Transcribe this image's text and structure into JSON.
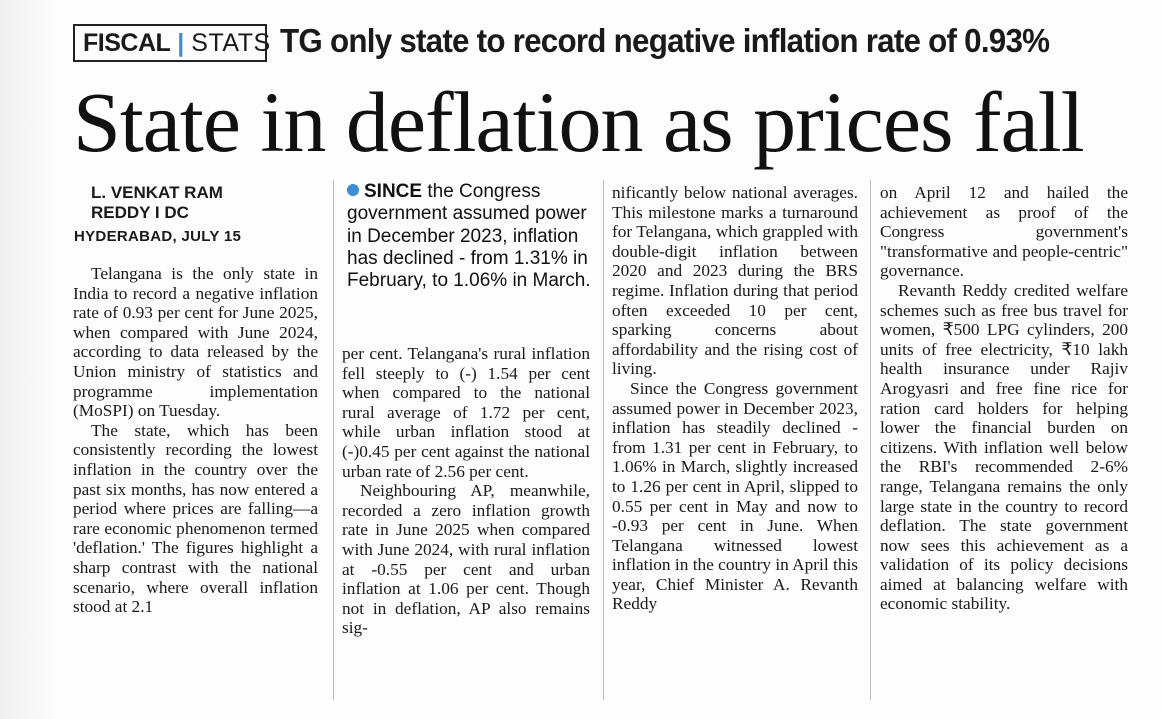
{
  "kicker": {
    "tag1": "FISCAL",
    "separator": "|",
    "tag2": "STATS",
    "title": "TG only state to record negative inflation rate of 0.93%"
  },
  "headline": "State in deflation as prices fall",
  "byline": {
    "author_line1": "L. VENKAT RAM",
    "author_line2": "REDDY I DC",
    "dateline": "HYDERABAD, JULY 15"
  },
  "pullquote": {
    "lead": "SINCE",
    "text": " the Congress government assumed power in December 2023, inflation has declined - from 1.31% in February, to 1.06% in March."
  },
  "columns": {
    "col1": [
      "Telangana is the only state in India to record a negative inflation rate of 0.93 per cent for June 2025, when compared with June 2024, according to data released by the Union ministry of statistics and programme implementation (MoSPI) on Tuesday.",
      "The state, which has been consistently recording the lowest inflation in the country over the past six months, has now entered a period where prices are falling—a rare economic phenomenon termed 'deflation.' The figures highlight a sharp contrast with the national scenario, where overall inflation stood at 2.1"
    ],
    "col2": [
      "per cent. Telangana's rural inflation fell steeply to (-) 1.54 per cent when compared to the national rural average of 1.72 per cent, while urban inflation stood at (-)0.45 per cent against the national urban rate of 2.56 per cent.",
      "Neighbouring AP, meanwhile, recorded a zero inflation growth rate in June 2025 when compared with June 2024, with rural inflation at -0.55 per cent and urban inflation at 1.06 per cent. Though not in deflation, AP also remains sig-"
    ],
    "col3": [
      "nificantly below national averages. This milestone marks a turnaround for Telangana, which grappled with double-digit inflation between 2020 and 2023 during the BRS regime. Inflation during that period often exceeded 10 per cent, sparking concerns about affordability and the rising cost of living.",
      "Since the Congress government assumed power in December 2023, inflation has steadily declined - from 1.31 per cent in February, to 1.06% in March, slightly increased to 1.26 per cent in April, slipped to 0.55 per cent in May and now to -0.93 per cent in June. When Telangana witnessed lowest inflation in the country in April this year, Chief Minister A. Revanth Reddy"
    ],
    "col4": [
      "on April 12 and hailed the achievement as proof of the Congress government's \"transformative and people-centric\" governance.",
      "Revanth Reddy credited welfare schemes such as free bus travel for women, ₹500 LPG cylinders, 200 units of free electricity, ₹10 lakh health insurance under Rajiv Arogyasri and free fine rice for ration card holders for helping lower the financial burden on citizens. With inflation well below the RBI's recommended 2-6% range, Telangana remains the only large state in the country to record deflation. The state government now sees this achievement as a validation of its policy decisions aimed at balancing welfare with economic stability."
    ]
  }
}
